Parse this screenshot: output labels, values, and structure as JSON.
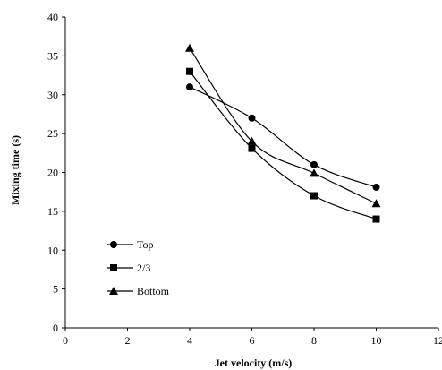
{
  "chart_data": {
    "type": "line",
    "title": "",
    "xlabel": "Jet velocity (m/s)",
    "ylabel": "Mixing time (s)",
    "xlim": [
      0,
      12
    ],
    "ylim": [
      0,
      40
    ],
    "xticks": [
      0,
      2,
      4,
      6,
      8,
      10,
      12
    ],
    "yticks": [
      0,
      5,
      10,
      15,
      20,
      25,
      30,
      35,
      40
    ],
    "xtick_labels": [
      "0",
      "2",
      "4",
      "6",
      "8",
      "10",
      "12"
    ],
    "ytick_labels": [
      "0",
      "5",
      "10",
      "15",
      "20",
      "25",
      "30",
      "35",
      "40"
    ],
    "grid": false,
    "smooth": true,
    "legend_position": "lower-left",
    "x": [
      4,
      6,
      8,
      10
    ],
    "series": [
      {
        "name": "Top",
        "marker": "circle",
        "values": [
          31,
          27,
          21,
          18.1
        ]
      },
      {
        "name": "2/3",
        "marker": "square",
        "values": [
          33,
          23.1,
          17,
          14
        ]
      },
      {
        "name": "Bottom",
        "marker": "triangle",
        "values": [
          36,
          24,
          19.9,
          16
        ]
      }
    ]
  }
}
